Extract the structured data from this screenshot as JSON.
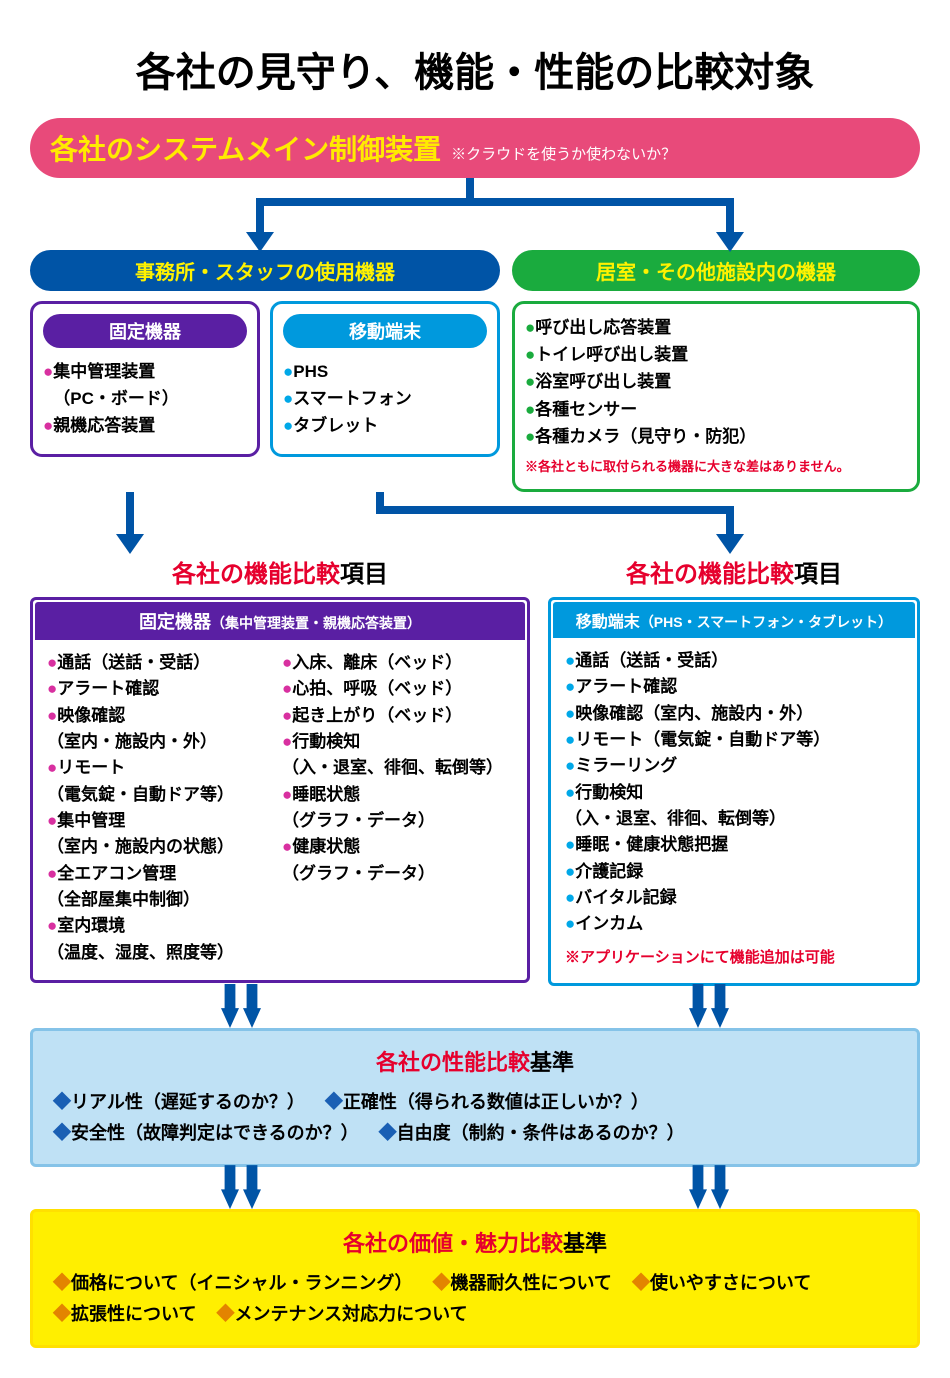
{
  "title": "各社の見守り、機能・性能の比較対象",
  "mainControl": {
    "label": "各社のシステムメイン制御装置",
    "note": "※クラウドを使うか使わないか？"
  },
  "colors": {
    "pink": "#e84a7a",
    "yellowText": "#ffeb00",
    "blue": "#0054a6",
    "green": "#1aab3e",
    "purple": "#5a1fa3",
    "cyan": "#0099dd",
    "magenta": "#d830a0",
    "red": "#e6002d",
    "lightBlueBg": "#bfe1f5",
    "lightBlueBorder": "#85c3e8",
    "yellowBg": "#ffef00",
    "yellowBorder": "#ffe000",
    "diamondBlue": "#1a5fb4",
    "diamondOrange": "#e38400"
  },
  "leftHeader": "事務所・スタッフの使用機器",
  "rightHeader": "居室・その他施設内の機器",
  "fixedDevice": {
    "title": "固定機器",
    "items": [
      "集中管理装置\n（PC・ボード）",
      "親機応答装置"
    ]
  },
  "mobileDevice": {
    "title": "移動端末",
    "items": [
      "PHS",
      "スマートフォン",
      "タブレット"
    ]
  },
  "roomDevice": {
    "items": [
      "呼び出し応答装置",
      "トイレ呼び出し装置",
      "浴室呼び出し装置",
      "各種センサー",
      "各種カメラ（見守り・防犯）"
    ],
    "note": "※各社ともに取付られる機器に大きな差はありません。"
  },
  "funcCompare": {
    "titleRed": "各社の機能比較",
    "titleBlack": "項目"
  },
  "fixedCompare": {
    "headTitle": "固定機器",
    "headSub": "（集中管理装置・親機応答装置）",
    "col1": [
      "通話（送話・受話）",
      "アラート確認",
      "映像確認\n（室内・施設内・外）",
      "リモート\n（電気錠・自動ドア等）",
      "集中管理\n（室内・施設内の状態）",
      "全エアコン管理\n（全部屋集中制御）",
      "室内環境\n（温度、湿度、照度等）"
    ],
    "col2": [
      "入床、離床（ベッド）",
      "心拍、呼吸（ベッド）",
      "起き上がり（ベッド）",
      "行動検知\n（入・退室、徘徊、転倒等）",
      "睡眠状態\n（グラフ・データ）",
      "健康状態\n（グラフ・データ）"
    ]
  },
  "mobileCompare": {
    "headTitle": "移動端末",
    "headSub": "（PHS・スマートフォン・タブレット）",
    "items": [
      "通話（送話・受話）",
      "アラート確認",
      "映像確認（室内、施設内・外）",
      "リモート（電気錠・自動ドア等）",
      "ミラーリング",
      "行動検知\n（入・退室、徘徊、転倒等）",
      "睡眠・健康状態把握",
      "介護記録",
      "バイタル記録",
      "インカム"
    ],
    "note": "※アプリケーションにて機能追加は可能"
  },
  "perfCriteria": {
    "titleRed": "各社の性能比較",
    "titleBlack": "基準",
    "items": [
      "リアル性（遅延するのか？）",
      "正確性（得られる数値は正しいか？）",
      "安全性（故障判定はできるのか？）",
      "自由度（制約・条件はあるのか？）"
    ]
  },
  "valueCriteria": {
    "titleRed": "各社の価値・魅力比較",
    "titleBlack": "基準",
    "items": [
      "価格について（イニシャル・ランニング）",
      "機器耐久性について",
      "使いやすさについて",
      "拡張性について",
      "メンテナンス対応力について"
    ]
  }
}
